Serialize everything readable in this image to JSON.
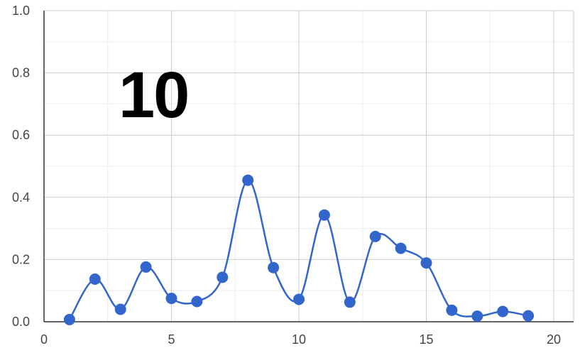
{
  "overlay_text": "10",
  "colors": {
    "series": "#3366cc",
    "grid_major": "#cccccc",
    "grid_minor": "#ebebeb",
    "axis": "#333333"
  },
  "chart_data": {
    "type": "line",
    "smooth": true,
    "markers": true,
    "title": "",
    "xlabel": "",
    "ylabel": "",
    "xlim": [
      0,
      20
    ],
    "ylim": [
      0,
      1
    ],
    "xticks": [
      0,
      5,
      10,
      15,
      20
    ],
    "yticks": [
      0,
      0.2,
      0.4,
      0.6,
      0.8,
      1.0
    ],
    "xtick_labels": [
      "0",
      "5",
      "10",
      "15",
      "20"
    ],
    "ytick_labels": [
      "0.0",
      "0.2",
      "0.4",
      "0.6",
      "0.8",
      "1.0"
    ],
    "grid": true,
    "series": [
      {
        "x": [
          1,
          2,
          3,
          4,
          5,
          6,
          7,
          8,
          9,
          10,
          11,
          12,
          13,
          14,
          15,
          16,
          17,
          18,
          19
        ],
        "y": [
          0.007,
          0.137,
          0.04,
          0.176,
          0.075,
          0.065,
          0.143,
          0.455,
          0.174,
          0.072,
          0.343,
          0.063,
          0.274,
          0.236,
          0.189,
          0.037,
          0.018,
          0.033,
          0.019
        ]
      }
    ]
  }
}
